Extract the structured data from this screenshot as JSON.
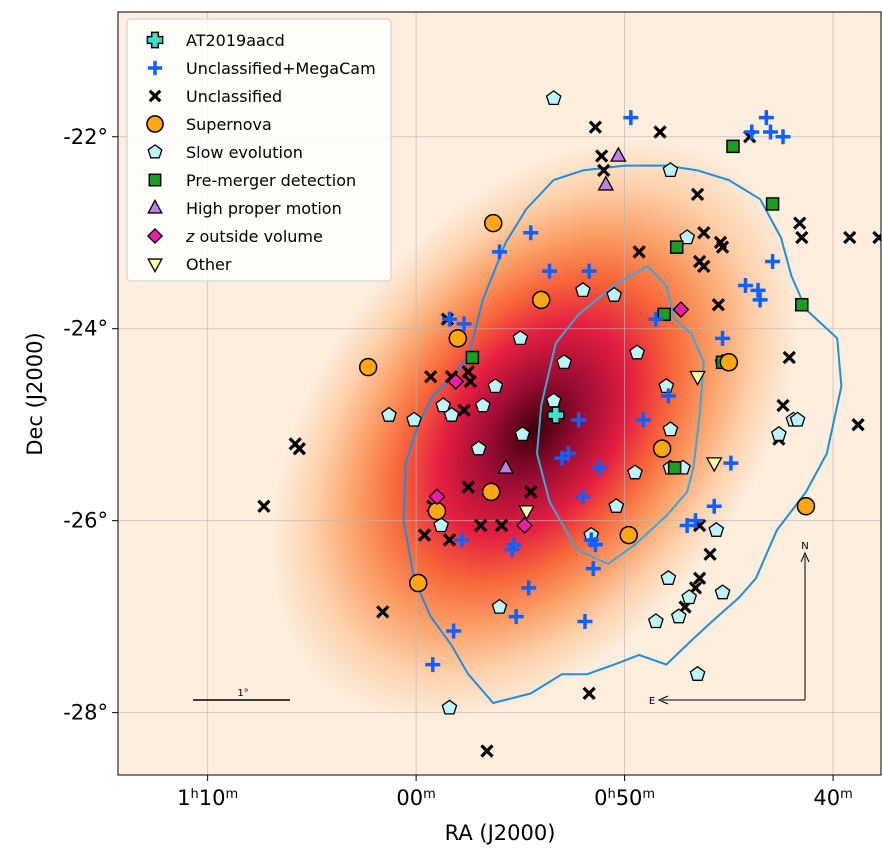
{
  "chart_data": {
    "type": "scatter",
    "xlabel": "RA (J2000)",
    "ylabel": "Dec (J2000)",
    "x_ticks": [
      {
        "ra": 70,
        "main": "1",
        "sup1": "h",
        "mid": "10",
        "sup2": "m"
      },
      {
        "ra": 60,
        "main": "",
        "sup1": "",
        "mid": "00",
        "sup2": "m"
      },
      {
        "ra": 50,
        "main": "0",
        "sup1": "h",
        "mid": "50",
        "sup2": "m"
      },
      {
        "ra": 40,
        "main": "",
        "sup1": "",
        "mid": "40",
        "sup2": "m"
      }
    ],
    "y_ticks": [
      {
        "dec": -22,
        "label": "-22°"
      },
      {
        "dec": -24,
        "label": "-24°"
      },
      {
        "dec": -26,
        "label": "-26°"
      },
      {
        "dec": -28,
        "label": "-28°"
      }
    ],
    "ra_range": [
      74.3,
      37.7
    ],
    "dec_range": [
      -28.65,
      -20.7
    ],
    "grid": true,
    "legend_position": "top-left",
    "scale_bar_label": "1°",
    "compass": {
      "north": "N",
      "east": "E"
    },
    "contours": [
      {
        "name": "outer",
        "color": "#1f8ee0",
        "points": [
          [
            57.5,
            -24.3
          ],
          [
            56.8,
            -23.7
          ],
          [
            55.7,
            -23.1
          ],
          [
            54.7,
            -22.75
          ],
          [
            53.4,
            -22.45
          ],
          [
            52.0,
            -22.35
          ],
          [
            50.0,
            -22.3
          ],
          [
            48.0,
            -22.3
          ],
          [
            46.5,
            -22.35
          ],
          [
            45.0,
            -22.45
          ],
          [
            43.5,
            -22.65
          ],
          [
            42.5,
            -23.05
          ],
          [
            42.0,
            -23.45
          ],
          [
            41.3,
            -23.8
          ],
          [
            39.8,
            -24.1
          ],
          [
            39.6,
            -24.6
          ],
          [
            40.3,
            -25.3
          ],
          [
            41.3,
            -25.7
          ],
          [
            42.7,
            -26.1
          ],
          [
            43.7,
            -26.6
          ],
          [
            44.5,
            -26.8
          ],
          [
            45.8,
            -27.05
          ],
          [
            46.8,
            -27.25
          ],
          [
            48.0,
            -27.5
          ],
          [
            49.3,
            -27.4
          ],
          [
            50.5,
            -27.5
          ],
          [
            51.8,
            -27.6
          ],
          [
            53.0,
            -27.6
          ],
          [
            54.5,
            -27.8
          ],
          [
            56.3,
            -27.9
          ],
          [
            57.5,
            -27.6
          ],
          [
            58.3,
            -27.3
          ],
          [
            59.3,
            -27.0
          ],
          [
            60.1,
            -26.6
          ],
          [
            60.6,
            -26.0
          ],
          [
            60.5,
            -25.4
          ],
          [
            59.9,
            -25.0
          ],
          [
            59.2,
            -24.7
          ],
          [
            58.3,
            -24.5
          ]
        ]
      },
      {
        "name": "inner",
        "color": "#3aa8d8",
        "points": [
          [
            54.0,
            -24.8
          ],
          [
            53.3,
            -24.15
          ],
          [
            52.2,
            -23.85
          ],
          [
            50.5,
            -23.55
          ],
          [
            48.9,
            -23.35
          ],
          [
            48.0,
            -23.55
          ],
          [
            47.6,
            -23.9
          ],
          [
            46.8,
            -24.05
          ],
          [
            46.2,
            -24.35
          ],
          [
            46.4,
            -24.9
          ],
          [
            46.7,
            -25.45
          ],
          [
            47.0,
            -25.7
          ],
          [
            48.0,
            -25.95
          ],
          [
            49.5,
            -26.25
          ],
          [
            50.8,
            -26.45
          ],
          [
            52.3,
            -26.3
          ],
          [
            53.6,
            -25.8
          ],
          [
            54.2,
            -25.3
          ]
        ]
      }
    ],
    "series": [
      {
        "name": "AT2019aacd",
        "marker": "cross-open",
        "color": "#40e0d0",
        "points": [
          [
            53.3,
            -24.9
          ]
        ]
      },
      {
        "name": "Unclassified+MegaCam",
        "marker": "plus",
        "color": "#1060ff",
        "points": [
          [
            49.7,
            -21.8
          ],
          [
            43.2,
            -21.8
          ],
          [
            43.0,
            -21.95
          ],
          [
            42.4,
            -22.0
          ],
          [
            43.9,
            -21.95
          ],
          [
            54.5,
            -23.0
          ],
          [
            56.0,
            -23.2
          ],
          [
            53.6,
            -23.4
          ],
          [
            51.7,
            -23.4
          ],
          [
            42.9,
            -23.3
          ],
          [
            44.2,
            -23.55
          ],
          [
            43.6,
            -23.6
          ],
          [
            43.5,
            -23.7
          ],
          [
            58.4,
            -23.9
          ],
          [
            57.7,
            -23.95
          ],
          [
            48.5,
            -23.9
          ],
          [
            45.3,
            -24.1
          ],
          [
            52.2,
            -24.95
          ],
          [
            49.1,
            -24.95
          ],
          [
            53.0,
            -25.35
          ],
          [
            52.7,
            -25.3
          ],
          [
            51.2,
            -25.45
          ],
          [
            44.9,
            -25.4
          ],
          [
            55.4,
            -26.3
          ],
          [
            57.8,
            -26.2
          ],
          [
            52.0,
            -25.75
          ],
          [
            51.6,
            -26.2
          ],
          [
            51.4,
            -26.25
          ],
          [
            47.0,
            -26.05
          ],
          [
            55.3,
            -26.25
          ],
          [
            51.5,
            -26.5
          ],
          [
            54.6,
            -26.7
          ],
          [
            55.2,
            -27.0
          ],
          [
            51.9,
            -27.05
          ],
          [
            58.2,
            -27.15
          ],
          [
            59.2,
            -27.5
          ],
          [
            47.9,
            -24.7
          ],
          [
            46.6,
            -26.0
          ],
          [
            45.7,
            -25.85
          ]
        ]
      },
      {
        "name": "Unclassified",
        "marker": "x",
        "color": "#000000",
        "points": [
          [
            51.4,
            -21.9
          ],
          [
            48.3,
            -21.95
          ],
          [
            44.0,
            -22.0
          ],
          [
            51.1,
            -22.2
          ],
          [
            51.0,
            -22.35
          ],
          [
            46.5,
            -22.6
          ],
          [
            46.2,
            -23.0
          ],
          [
            45.3,
            -23.15
          ],
          [
            46.4,
            -23.3
          ],
          [
            41.5,
            -23.05
          ],
          [
            49.3,
            -23.2
          ],
          [
            45.5,
            -23.75
          ],
          [
            46.2,
            -23.35
          ],
          [
            45.4,
            -23.1
          ],
          [
            39.2,
            -23.05
          ],
          [
            41.6,
            -22.9
          ],
          [
            58.5,
            -23.9
          ],
          [
            58.3,
            -24.5
          ],
          [
            57.4,
            -24.55
          ],
          [
            57.7,
            -24.85
          ],
          [
            42.1,
            -24.3
          ],
          [
            65.8,
            -25.2
          ],
          [
            65.6,
            -25.25
          ],
          [
            67.3,
            -25.85
          ],
          [
            57.5,
            -25.65
          ],
          [
            59.2,
            -25.85
          ],
          [
            58.4,
            -26.2
          ],
          [
            59.6,
            -26.15
          ],
          [
            55.9,
            -26.05
          ],
          [
            56.9,
            -26.05
          ],
          [
            42.4,
            -24.8
          ],
          [
            42.6,
            -25.15
          ],
          [
            46.4,
            -26.05
          ],
          [
            45.9,
            -26.35
          ],
          [
            46.4,
            -26.6
          ],
          [
            46.6,
            -26.7
          ],
          [
            47.1,
            -26.9
          ],
          [
            38.8,
            -25.0
          ],
          [
            37.8,
            -23.05
          ],
          [
            61.6,
            -26.95
          ],
          [
            51.7,
            -27.8
          ],
          [
            56.6,
            -28.4
          ],
          [
            59.3,
            -24.5
          ],
          [
            57.5,
            -24.45
          ],
          [
            54.5,
            -25.7
          ]
        ]
      },
      {
        "name": "Supernova",
        "marker": "circle",
        "color": "#ffa614",
        "points": [
          [
            56.3,
            -22.9
          ],
          [
            54.0,
            -23.7
          ],
          [
            58.0,
            -24.1
          ],
          [
            62.3,
            -24.4
          ],
          [
            45.0,
            -24.35
          ],
          [
            48.2,
            -25.25
          ],
          [
            56.4,
            -25.7
          ],
          [
            59.0,
            -25.9
          ],
          [
            49.8,
            -26.15
          ],
          [
            59.9,
            -26.65
          ],
          [
            41.3,
            -25.85
          ]
        ]
      },
      {
        "name": "Slow evolution",
        "marker": "pentagon",
        "color": "#bff3fa",
        "points": [
          [
            53.4,
            -21.6
          ],
          [
            47.8,
            -22.35
          ],
          [
            47.0,
            -23.05
          ],
          [
            52.0,
            -23.6
          ],
          [
            55.0,
            -24.1
          ],
          [
            50.5,
            -23.65
          ],
          [
            49.4,
            -24.25
          ],
          [
            52.9,
            -24.35
          ],
          [
            45.3,
            -24.35
          ],
          [
            56.2,
            -24.6
          ],
          [
            56.8,
            -24.8
          ],
          [
            54.9,
            -25.1
          ],
          [
            57.0,
            -25.25
          ],
          [
            48.0,
            -24.6
          ],
          [
            47.8,
            -25.05
          ],
          [
            47.2,
            -25.45
          ],
          [
            47.8,
            -25.45
          ],
          [
            49.5,
            -25.5
          ],
          [
            50.4,
            -25.85
          ],
          [
            51.6,
            -26.15
          ],
          [
            58.8,
            -26.05
          ],
          [
            56.0,
            -26.9
          ],
          [
            47.9,
            -26.6
          ],
          [
            46.9,
            -26.8
          ],
          [
            47.4,
            -27.0
          ],
          [
            45.6,
            -26.1
          ],
          [
            45.3,
            -26.75
          ],
          [
            42.6,
            -25.1
          ],
          [
            41.9,
            -24.95
          ],
          [
            61.3,
            -24.9
          ],
          [
            60.1,
            -24.95
          ],
          [
            58.7,
            -24.8
          ],
          [
            58.3,
            -24.9
          ],
          [
            58.4,
            -27.95
          ],
          [
            48.5,
            -27.05
          ],
          [
            46.5,
            -27.6
          ],
          [
            53.4,
            -24.75
          ],
          [
            41.7,
            -24.95
          ]
        ]
      },
      {
        "name": "Pre-merger detection",
        "marker": "square",
        "color": "#18a020",
        "points": [
          [
            44.8,
            -22.1
          ],
          [
            42.9,
            -22.7
          ],
          [
            47.5,
            -23.15
          ],
          [
            48.1,
            -23.85
          ],
          [
            41.5,
            -23.75
          ],
          [
            57.3,
            -24.3
          ],
          [
            47.6,
            -25.45
          ],
          [
            45.3,
            -24.35
          ]
        ]
      },
      {
        "name": "High proper motion",
        "marker": "triangle-up",
        "color": "#c17fe6",
        "points": [
          [
            50.9,
            -22.5
          ],
          [
            50.3,
            -22.2
          ],
          [
            55.7,
            -25.45
          ]
        ]
      },
      {
        "name": "z outside volume",
        "marker": "diamond",
        "color": "#ee1ea8",
        "points": [
          [
            58.1,
            -24.55
          ],
          [
            59.0,
            -25.75
          ],
          [
            54.8,
            -26.05
          ],
          [
            47.3,
            -23.8
          ]
        ]
      },
      {
        "name": "Other",
        "marker": "triangle-down",
        "color": "#ffffaa",
        "points": [
          [
            46.5,
            -24.5
          ],
          [
            45.7,
            -25.4
          ],
          [
            54.7,
            -25.9
          ]
        ]
      }
    ]
  }
}
